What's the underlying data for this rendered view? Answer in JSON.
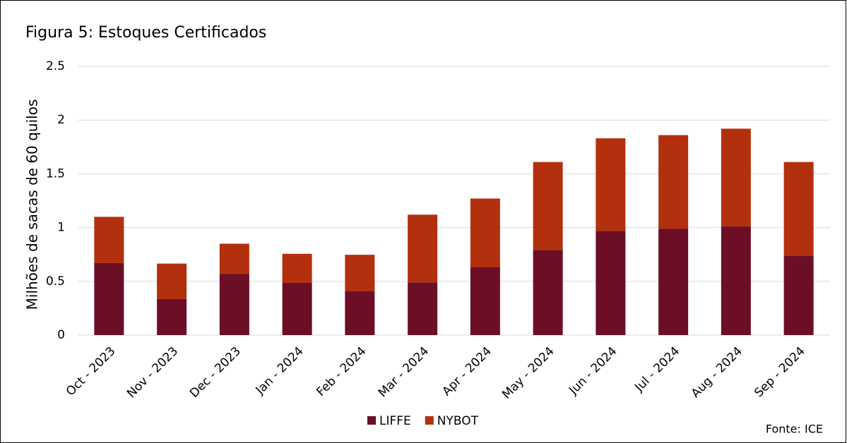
{
  "chart_data": {
    "type": "stacked_bar",
    "title": "Figura 5: Estoques Certificados",
    "y_label": "Milhões de sacas de 60 quilos",
    "source": "Fonte: ICE",
    "categories": [
      "Oct - 2023",
      "Nov - 2023",
      "Dec - 2023",
      "Jan - 2024",
      "Feb - 2024",
      "Mar - 2024",
      "Apr - 2024",
      "May - 2024",
      "Jun - 2024",
      "Jul - 2024",
      "Aug - 2024",
      "Sep - 2024"
    ],
    "series": [
      {
        "name": "LIFFE",
        "color": "#6b0e26",
        "values": [
          0.67,
          0.335,
          0.57,
          0.486,
          0.407,
          0.49,
          0.63,
          0.79,
          0.97,
          0.99,
          1.01,
          0.74
        ]
      },
      {
        "name": "NYBOT",
        "color": "#b2300e",
        "values": [
          0.43,
          0.33,
          0.28,
          0.27,
          0.34,
          0.63,
          0.64,
          0.82,
          0.86,
          0.87,
          0.91,
          0.87
        ]
      }
    ],
    "ylim": [
      0,
      2.5
    ],
    "yticks": [
      0,
      0.5,
      1,
      1.5,
      2,
      2.5
    ],
    "grid": true,
    "legend": "bottom"
  }
}
